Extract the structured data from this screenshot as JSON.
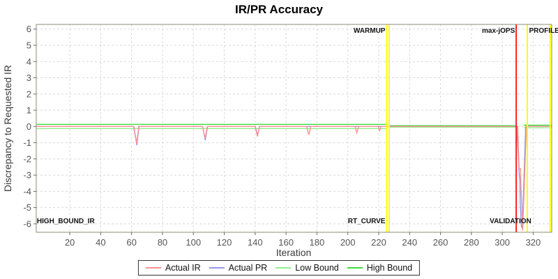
{
  "chart_data": {
    "type": "line",
    "title": "IR/PR Accuracy",
    "xlabel": "Iteration",
    "ylabel": "Discrepancy to Requested IR",
    "xlim": [
      -1.7,
      332
    ],
    "ylim": [
      -6.52,
      6.29
    ],
    "grid": true,
    "legend_position": "bottom",
    "grid_color": "#d9d9d9",
    "border_color": "#8b8b75",
    "x_ticks": [
      20,
      40,
      60,
      80,
      100,
      120,
      140,
      160,
      180,
      200,
      220,
      240,
      260,
      280,
      300,
      320
    ],
    "y_ticks": [
      6,
      5,
      4,
      3,
      2,
      1,
      0,
      -1,
      -2,
      -3,
      -4,
      -5,
      -6
    ],
    "series": [
      {
        "name": "Actual IR",
        "color": "#ff9191",
        "segments": [
          [
            [
              -1.7,
              0
            ],
            [
              61.5,
              0
            ],
            [
              63.3,
              -1.05
            ],
            [
              64.7,
              0
            ],
            [
              105.9,
              0
            ],
            [
              107.6,
              -0.72
            ],
            [
              109,
              0
            ],
            [
              140,
              0
            ],
            [
              141.5,
              -0.62
            ],
            [
              142.8,
              0
            ],
            [
              173.3,
              0
            ],
            [
              174.8,
              -0.52
            ],
            [
              176,
              0
            ],
            [
              204.7,
              0
            ],
            [
              205.8,
              -0.4
            ],
            [
              207,
              0
            ],
            [
              219.6,
              0
            ],
            [
              220.6,
              -0.25
            ],
            [
              221.6,
              0
            ],
            [
              309.9,
              0
            ],
            [
              310.9,
              -2.6
            ],
            [
              311.8,
              -2.6
            ],
            [
              311.9,
              -3.2
            ],
            [
              313.2,
              -6.4
            ],
            [
              315.6,
              0
            ],
            [
              331.9,
              0
            ]
          ]
        ]
      },
      {
        "name": "Actual PR",
        "color": "#9595e8",
        "segments": [
          [
            [
              -1.7,
              0
            ],
            [
              61.3,
              0
            ],
            [
              63.4,
              -1.15
            ],
            [
              64.8,
              0
            ],
            [
              106,
              0
            ],
            [
              107.7,
              -0.85
            ],
            [
              109.2,
              0
            ],
            [
              140.1,
              0
            ],
            [
              141.6,
              -0.55
            ],
            [
              142.9,
              0
            ],
            [
              309.3,
              0
            ],
            [
              310.3,
              -1.6
            ],
            [
              310.9,
              -2.9
            ],
            [
              311.4,
              -3.3
            ],
            [
              311.6,
              -4.7
            ],
            [
              312.4,
              -6.2
            ],
            [
              313,
              -6.25
            ],
            [
              315.1,
              0
            ],
            [
              331.9,
              0
            ]
          ]
        ]
      },
      {
        "name": "Low Bound",
        "color": "#90ee90",
        "segments": [
          [
            [
              -1.7,
              -0.13
            ],
            [
              225.2,
              -0.13
            ]
          ],
          [
            [
              226.8,
              -0.04
            ],
            [
              308.6,
              -0.04
            ]
          ],
          [
            [
              313.9,
              -0.08
            ],
            [
              331.9,
              -0.08
            ]
          ]
        ]
      },
      {
        "name": "High Bound",
        "color": "#3cdc3c",
        "segments": [
          [
            [
              -1.7,
              0.13
            ],
            [
              225.2,
              0.13
            ]
          ],
          [
            [
              226.8,
              0.05
            ],
            [
              308.6,
              0.05
            ]
          ],
          [
            [
              313.9,
              0.08
            ],
            [
              331.9,
              0.08
            ]
          ]
        ]
      }
    ],
    "phase_lines": [
      {
        "name": "warmup-line-a",
        "x": 225.2,
        "color": "#ffff00"
      },
      {
        "name": "warmup-line-b",
        "x": 226.8,
        "color": "#ffff00"
      },
      {
        "name": "max-jops-line",
        "x": 309,
        "color": "#ff2222"
      },
      {
        "name": "profile-start-line",
        "x": 316.2,
        "color": "#ffff00"
      },
      {
        "name": "profile-end-line",
        "x": 331,
        "color": "#ffff00"
      }
    ],
    "phase_labels": [
      {
        "name": "warmup",
        "text": "WARMUP",
        "x": 224.3,
        "align": "end",
        "pos": "top"
      },
      {
        "name": "max-jops",
        "text": "max-jOPS",
        "x": 308.2,
        "align": "end",
        "pos": "top"
      },
      {
        "name": "profile",
        "text": "PROFILE",
        "x": 317.3,
        "align": "start",
        "pos": "top"
      },
      {
        "name": "rt-curve",
        "text": "RT_CURVE",
        "x": 224.3,
        "align": "end",
        "pos": "bottom"
      },
      {
        "name": "validation",
        "text": "VALIDATION",
        "x": 318.8,
        "align": "end",
        "pos": "bottom"
      },
      {
        "name": "high-bound-ir",
        "text": "HIGH_BOUND_IR",
        "x": -1.3,
        "align": "start",
        "pos": "bottom"
      }
    ]
  }
}
